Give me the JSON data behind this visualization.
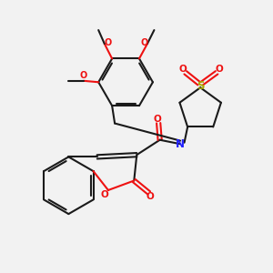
{
  "bg_color": "#f2f2f2",
  "bond_color": "#1a1a1a",
  "N_color": "#2222ff",
  "O_color": "#ee1111",
  "S_color": "#aaaa00",
  "line_width": 1.5,
  "fig_size": [
    3.0,
    3.0
  ],
  "dpi": 100,
  "xlim": [
    0,
    10
  ],
  "ylim": [
    0,
    10
  ]
}
